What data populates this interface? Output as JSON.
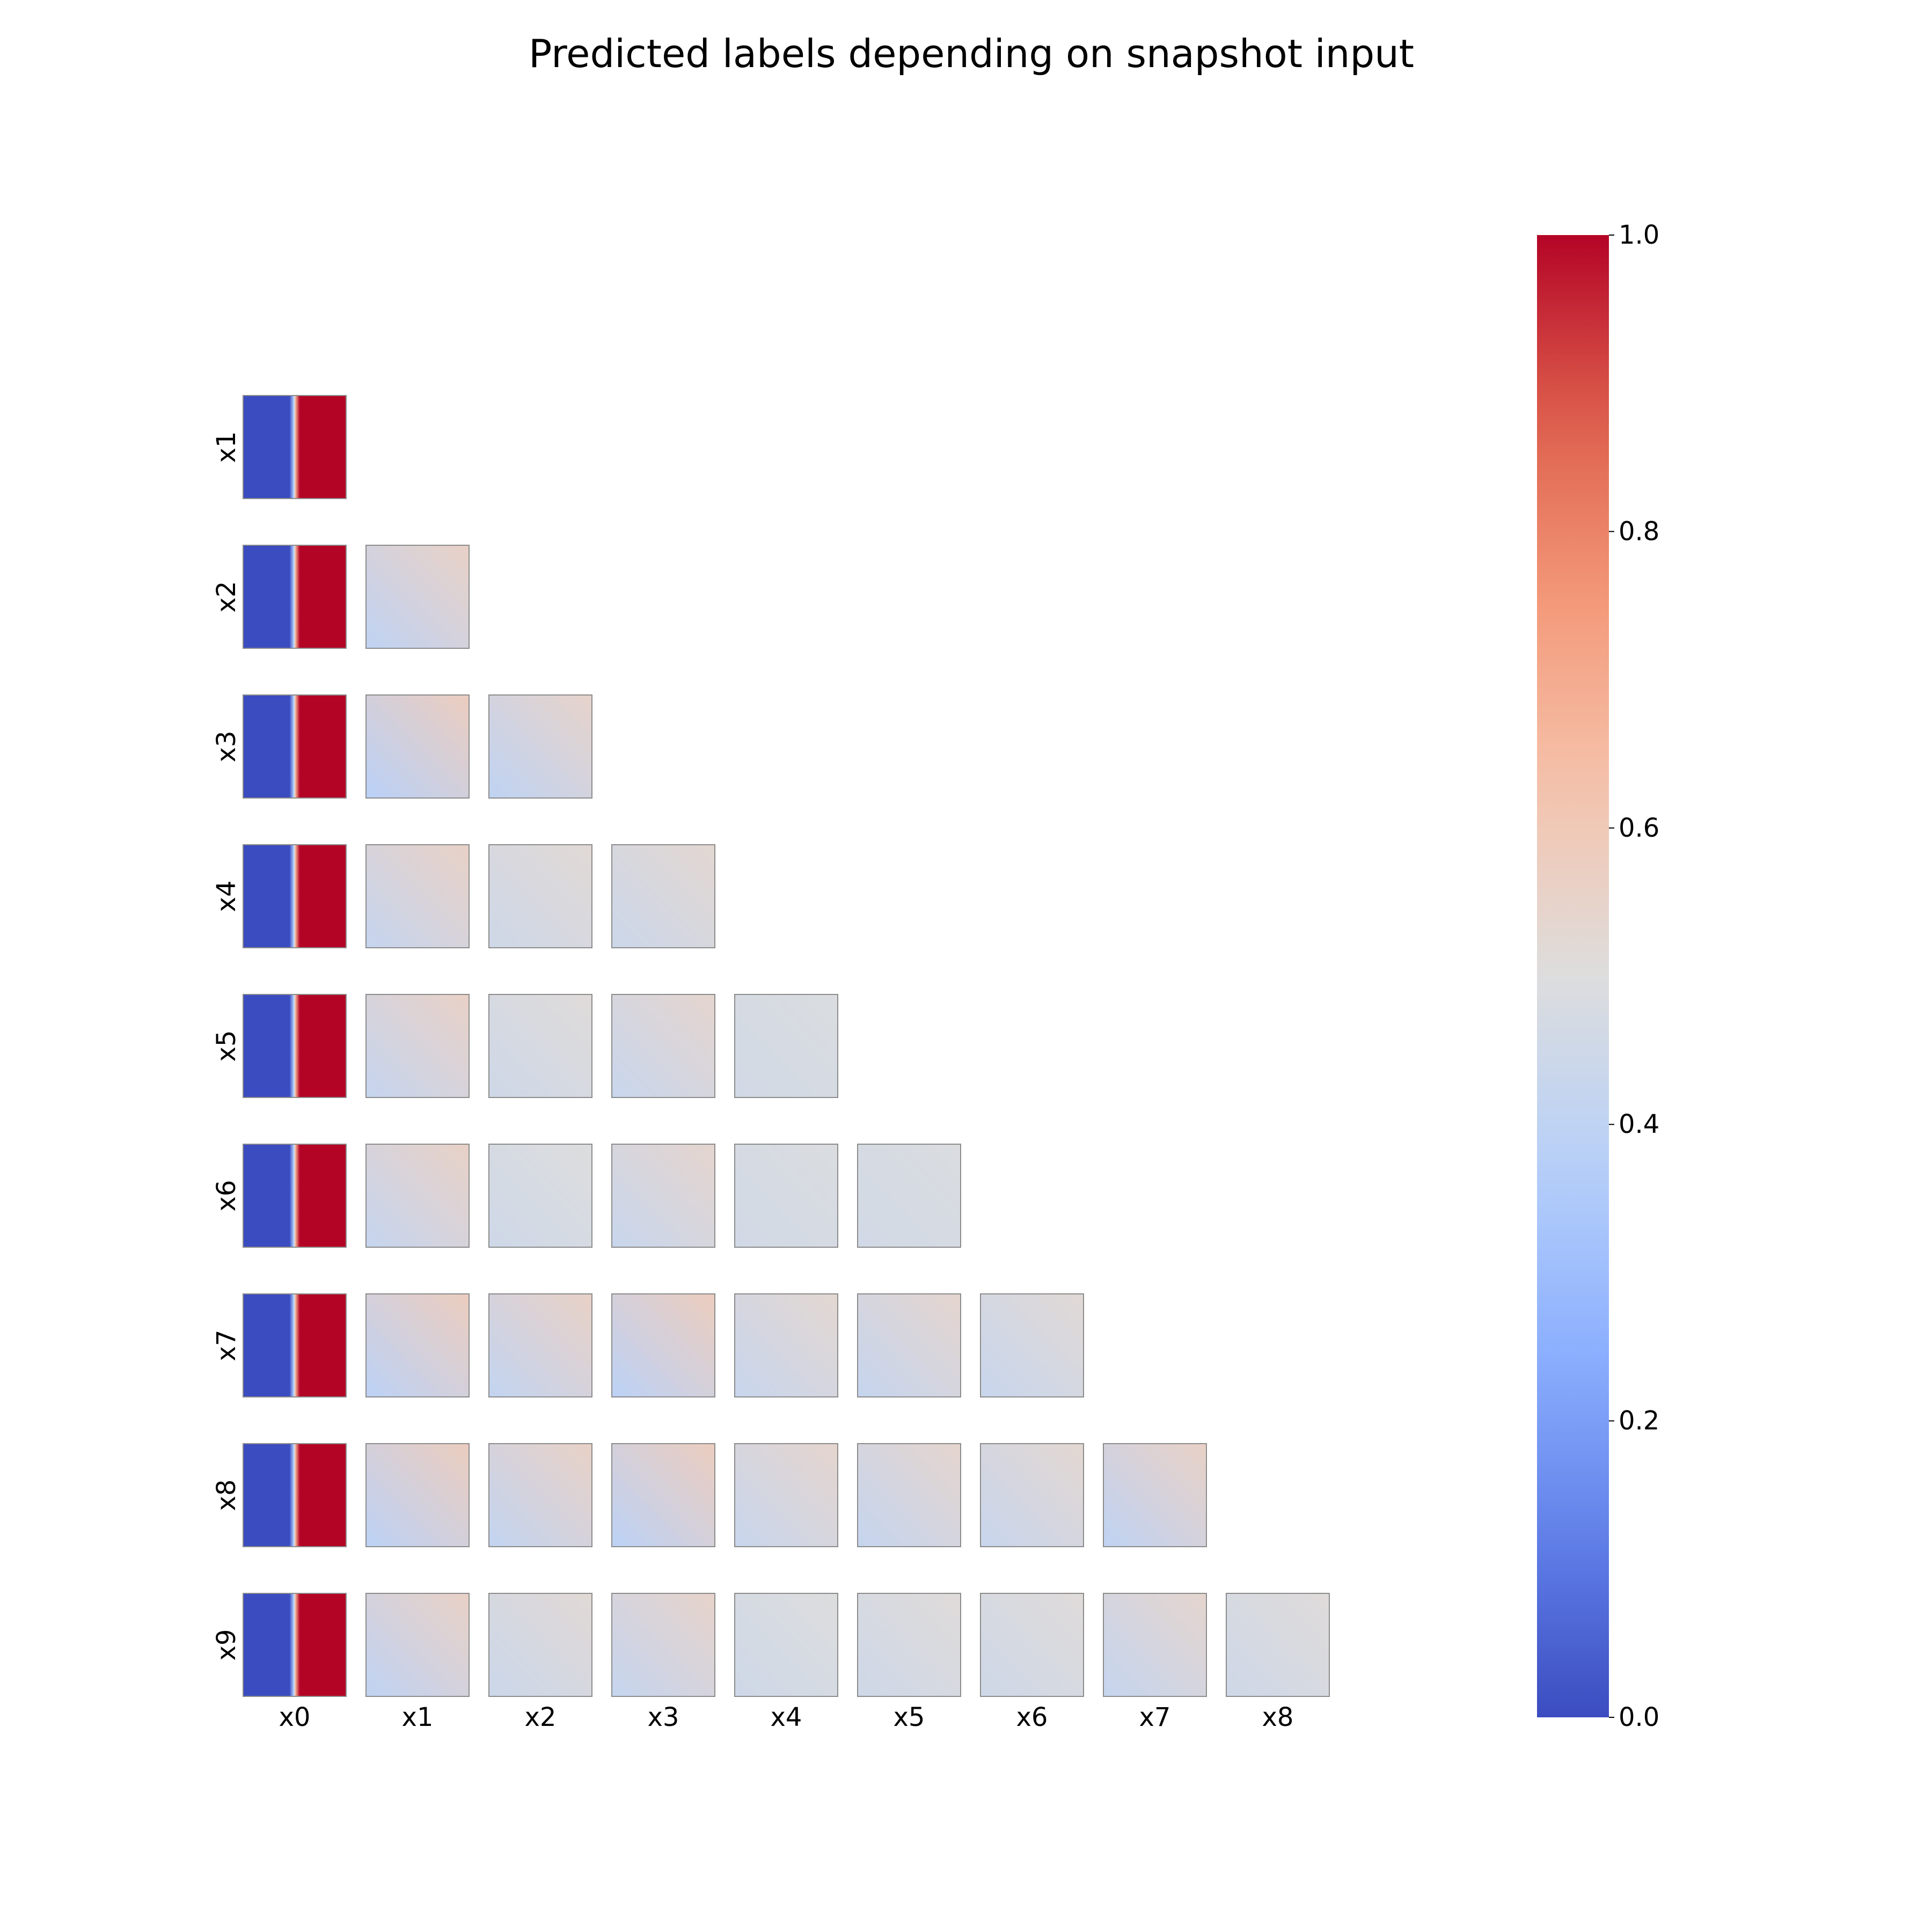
{
  "chart_data": {
    "type": "heatmap",
    "title": "Predicted labels depending on snapshot input",
    "layout": "lower-triangular pairwise grid of small heatmaps",
    "row_labels": [
      "x1",
      "x2",
      "x3",
      "x4",
      "x5",
      "x6",
      "x7",
      "x8",
      "x9"
    ],
    "col_labels": [
      "x0",
      "x1",
      "x2",
      "x3",
      "x4",
      "x5",
      "x6",
      "x7",
      "x8"
    ],
    "colormap": "coolwarm",
    "colorbar": {
      "min": 0.0,
      "max": 1.0,
      "ticks": [
        "0.0",
        "0.2",
        "0.4",
        "0.6",
        "0.8",
        "1.0"
      ],
      "placement": "right"
    },
    "x0_column": {
      "description": "sharp step along x0",
      "low_value": 0.0,
      "high_value": 1.0,
      "step_at_fraction": 0.5
    },
    "cells": [
      {
        "row": "x2",
        "col": "x1",
        "bottom_left": 0.4,
        "top_right": 0.56
      },
      {
        "row": "x3",
        "col": "x1",
        "bottom_left": 0.38,
        "top_right": 0.58
      },
      {
        "row": "x3",
        "col": "x2",
        "bottom_left": 0.4,
        "top_right": 0.55
      },
      {
        "row": "x4",
        "col": "x1",
        "bottom_left": 0.42,
        "top_right": 0.56
      },
      {
        "row": "x4",
        "col": "x2",
        "bottom_left": 0.45,
        "top_right": 0.52
      },
      {
        "row": "x4",
        "col": "x3",
        "bottom_left": 0.44,
        "top_right": 0.53
      },
      {
        "row": "x5",
        "col": "x1",
        "bottom_left": 0.42,
        "top_right": 0.56
      },
      {
        "row": "x5",
        "col": "x2",
        "bottom_left": 0.45,
        "top_right": 0.51
      },
      {
        "row": "x5",
        "col": "x3",
        "bottom_left": 0.43,
        "top_right": 0.54
      },
      {
        "row": "x5",
        "col": "x4",
        "bottom_left": 0.46,
        "top_right": 0.49
      },
      {
        "row": "x6",
        "col": "x1",
        "bottom_left": 0.42,
        "top_right": 0.56
      },
      {
        "row": "x6",
        "col": "x2",
        "bottom_left": 0.45,
        "top_right": 0.5
      },
      {
        "row": "x6",
        "col": "x3",
        "bottom_left": 0.43,
        "top_right": 0.54
      },
      {
        "row": "x6",
        "col": "x4",
        "bottom_left": 0.46,
        "top_right": 0.49
      },
      {
        "row": "x6",
        "col": "x5",
        "bottom_left": 0.46,
        "top_right": 0.49
      },
      {
        "row": "x7",
        "col": "x1",
        "bottom_left": 0.39,
        "top_right": 0.58
      },
      {
        "row": "x7",
        "col": "x2",
        "bottom_left": 0.41,
        "top_right": 0.56
      },
      {
        "row": "x7",
        "col": "x3",
        "bottom_left": 0.39,
        "top_right": 0.58
      },
      {
        "row": "x7",
        "col": "x4",
        "bottom_left": 0.43,
        "top_right": 0.53
      },
      {
        "row": "x7",
        "col": "x5",
        "bottom_left": 0.42,
        "top_right": 0.54
      },
      {
        "row": "x7",
        "col": "x6",
        "bottom_left": 0.43,
        "top_right": 0.52
      },
      {
        "row": "x8",
        "col": "x1",
        "bottom_left": 0.39,
        "top_right": 0.58
      },
      {
        "row": "x8",
        "col": "x2",
        "bottom_left": 0.41,
        "top_right": 0.56
      },
      {
        "row": "x8",
        "col": "x3",
        "bottom_left": 0.39,
        "top_right": 0.58
      },
      {
        "row": "x8",
        "col": "x4",
        "bottom_left": 0.43,
        "top_right": 0.54
      },
      {
        "row": "x8",
        "col": "x5",
        "bottom_left": 0.42,
        "top_right": 0.54
      },
      {
        "row": "x8",
        "col": "x6",
        "bottom_left": 0.43,
        "top_right": 0.53
      },
      {
        "row": "x8",
        "col": "x7",
        "bottom_left": 0.4,
        "top_right": 0.56
      },
      {
        "row": "x9",
        "col": "x1",
        "bottom_left": 0.4,
        "top_right": 0.56
      },
      {
        "row": "x9",
        "col": "x2",
        "bottom_left": 0.44,
        "top_right": 0.52
      },
      {
        "row": "x9",
        "col": "x3",
        "bottom_left": 0.42,
        "top_right": 0.55
      },
      {
        "row": "x9",
        "col": "x4",
        "bottom_left": 0.45,
        "top_right": 0.5
      },
      {
        "row": "x9",
        "col": "x5",
        "bottom_left": 0.45,
        "top_right": 0.51
      },
      {
        "row": "x9",
        "col": "x6",
        "bottom_left": 0.45,
        "top_right": 0.51
      },
      {
        "row": "x9",
        "col": "x7",
        "bottom_left": 0.42,
        "top_right": 0.54
      },
      {
        "row": "x9",
        "col": "x8",
        "bottom_left": 0.45,
        "top_right": 0.51
      }
    ]
  }
}
